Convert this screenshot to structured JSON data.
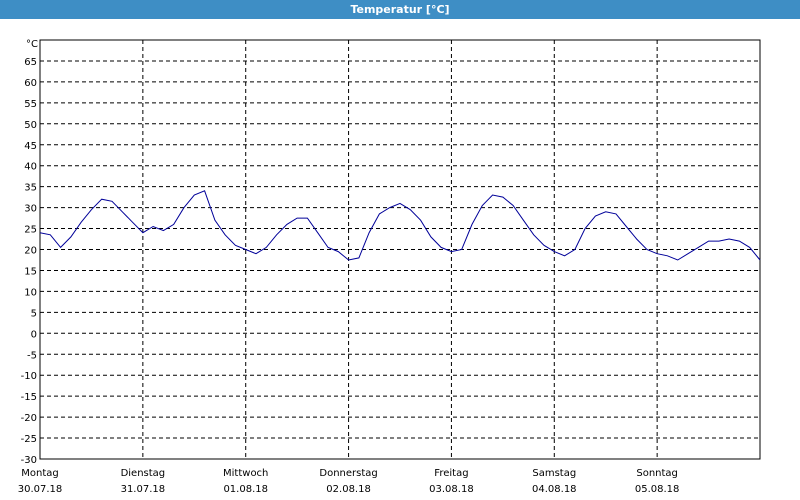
{
  "window": {
    "title": "Temperatur [°C]"
  },
  "chart_data": {
    "type": "line",
    "title": "Temperatur [°C]",
    "ylabel": "°C",
    "xlabel": "",
    "ylim": [
      -30,
      70
    ],
    "xlim": [
      0,
      7
    ],
    "grid": true,
    "y_ticks": [
      65,
      60,
      55,
      50,
      45,
      40,
      35,
      30,
      25,
      20,
      15,
      10,
      5,
      0,
      -5,
      -10,
      -15,
      -20,
      -25,
      -30
    ],
    "x_ticks": [
      {
        "day": "Montag",
        "date": "30.07.18",
        "x": 0
      },
      {
        "day": "Dienstag",
        "date": "31.07.18",
        "x": 1
      },
      {
        "day": "Mittwoch",
        "date": "01.08.18",
        "x": 2
      },
      {
        "day": "Donnerstag",
        "date": "02.08.18",
        "x": 3
      },
      {
        "day": "Freitag",
        "date": "03.08.18",
        "x": 4
      },
      {
        "day": "Samstag",
        "date": "04.08.18",
        "x": 5
      },
      {
        "day": "Sonntag",
        "date": "05.08.18",
        "x": 6
      }
    ],
    "series": [
      {
        "color": "#000099",
        "x": [
          0,
          0.1,
          0.2,
          0.3,
          0.4,
          0.5,
          0.6,
          0.7,
          0.8,
          0.9,
          1.0,
          1.1,
          1.2,
          1.3,
          1.4,
          1.5,
          1.6,
          1.7,
          1.8,
          1.9,
          2.0,
          2.1,
          2.2,
          2.3,
          2.4,
          2.5,
          2.6,
          2.7,
          2.8,
          2.9,
          3.0,
          3.1,
          3.2,
          3.3,
          3.4,
          3.5,
          3.6,
          3.7,
          3.8,
          3.9,
          4.0,
          4.1,
          4.2,
          4.3,
          4.4,
          4.5,
          4.6,
          4.7,
          4.8,
          4.9,
          5.0,
          5.1,
          5.2,
          5.3,
          5.4,
          5.5,
          5.6,
          5.7,
          5.8,
          5.9,
          6.0,
          6.1,
          6.2,
          6.3,
          6.4,
          6.5,
          6.6,
          6.7,
          6.8,
          6.9,
          7.0
        ],
        "y": [
          24,
          23.5,
          20.5,
          23,
          26.5,
          29.5,
          32,
          31.5,
          29,
          26.5,
          24,
          25.5,
          24.5,
          26,
          30,
          33,
          34,
          27,
          23.5,
          21,
          20,
          19,
          20.5,
          23.5,
          26,
          27.5,
          27.5,
          24,
          20.5,
          19.5,
          17.5,
          18,
          24,
          28.5,
          30,
          31,
          29.5,
          27,
          23,
          20.5,
          19.5,
          20,
          26,
          30.5,
          33,
          32.5,
          30.5,
          27,
          23.5,
          21,
          19.5,
          18.5,
          20,
          25,
          28,
          29,
          28.5,
          25.5,
          22.5,
          20,
          19,
          18.5,
          17.5,
          19,
          20.5,
          22,
          22,
          22.5,
          22,
          20.5,
          17.5
        ]
      }
    ]
  }
}
